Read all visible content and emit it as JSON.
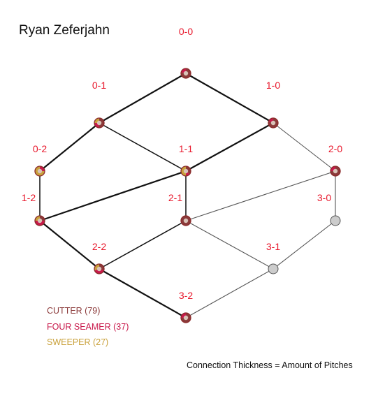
{
  "title": "Ryan Zeferjahn",
  "footnote": "Connection Thickness = Amount of Pitches",
  "colors": {
    "label": "#e8172b",
    "edge": "#555555",
    "edge_heavy": "#111111",
    "node_empty": "#cccccc",
    "node_ring": "#8b2a2a"
  },
  "legend": [
    {
      "label": "CUTTER (79)",
      "color": "#8b3a3a"
    },
    {
      "label": "FOUR SEAMER (37)",
      "color": "#c8194b"
    },
    {
      "label": "SWEEPER (27)",
      "color": "#c9a13b"
    }
  ],
  "counts": [
    {
      "id": "0-0",
      "label": "0-0",
      "mix": [
        0.78,
        0.22,
        0.0
      ]
    },
    {
      "id": "0-1",
      "label": "0-1",
      "mix": [
        0.5,
        0.25,
        0.25
      ]
    },
    {
      "id": "1-0",
      "label": "1-0",
      "mix": [
        0.8,
        0.2,
        0.0
      ]
    },
    {
      "id": "0-2",
      "label": "0-2",
      "mix": [
        0.0,
        0.25,
        0.75
      ]
    },
    {
      "id": "1-1",
      "label": "1-1",
      "mix": [
        0.35,
        0.15,
        0.5
      ]
    },
    {
      "id": "2-0",
      "label": "2-0",
      "mix": [
        0.75,
        0.25,
        0.0
      ]
    },
    {
      "id": "1-2",
      "label": "1-2",
      "mix": [
        0.25,
        0.5,
        0.25
      ]
    },
    {
      "id": "2-1",
      "label": "2-1",
      "mix": [
        1.0,
        0.0,
        0.0
      ]
    },
    {
      "id": "3-0",
      "label": "3-0",
      "mix": [
        0.0,
        0.0,
        0.0
      ]
    },
    {
      "id": "2-2",
      "label": "2-2",
      "mix": [
        0.3,
        0.4,
        0.3
      ]
    },
    {
      "id": "3-1",
      "label": "3-1",
      "mix": [
        0.0,
        0.0,
        0.0
      ]
    },
    {
      "id": "3-2",
      "label": "3-2",
      "mix": [
        0.75,
        0.25,
        0.0
      ]
    }
  ],
  "connections": [
    {
      "from": "0-0",
      "to": "0-1",
      "weight": "heavy"
    },
    {
      "from": "0-0",
      "to": "1-0",
      "weight": "heavy"
    },
    {
      "from": "0-1",
      "to": "0-2",
      "weight": "heavy"
    },
    {
      "from": "0-1",
      "to": "1-1",
      "weight": "medium"
    },
    {
      "from": "1-0",
      "to": "1-1",
      "weight": "heavy"
    },
    {
      "from": "1-0",
      "to": "2-0",
      "weight": "light"
    },
    {
      "from": "0-2",
      "to": "1-2",
      "weight": "medium"
    },
    {
      "from": "1-1",
      "to": "1-2",
      "weight": "heavy"
    },
    {
      "from": "1-1",
      "to": "2-1",
      "weight": "medium"
    },
    {
      "from": "2-0",
      "to": "2-1",
      "weight": "light"
    },
    {
      "from": "2-0",
      "to": "3-0",
      "weight": "light"
    },
    {
      "from": "1-2",
      "to": "2-2",
      "weight": "heavy"
    },
    {
      "from": "2-1",
      "to": "2-2",
      "weight": "medium"
    },
    {
      "from": "2-1",
      "to": "3-1",
      "weight": "light"
    },
    {
      "from": "3-0",
      "to": "3-1",
      "weight": "light"
    },
    {
      "from": "2-2",
      "to": "3-2",
      "weight": "heavy"
    },
    {
      "from": "3-1",
      "to": "3-2",
      "weight": "light"
    }
  ]
}
